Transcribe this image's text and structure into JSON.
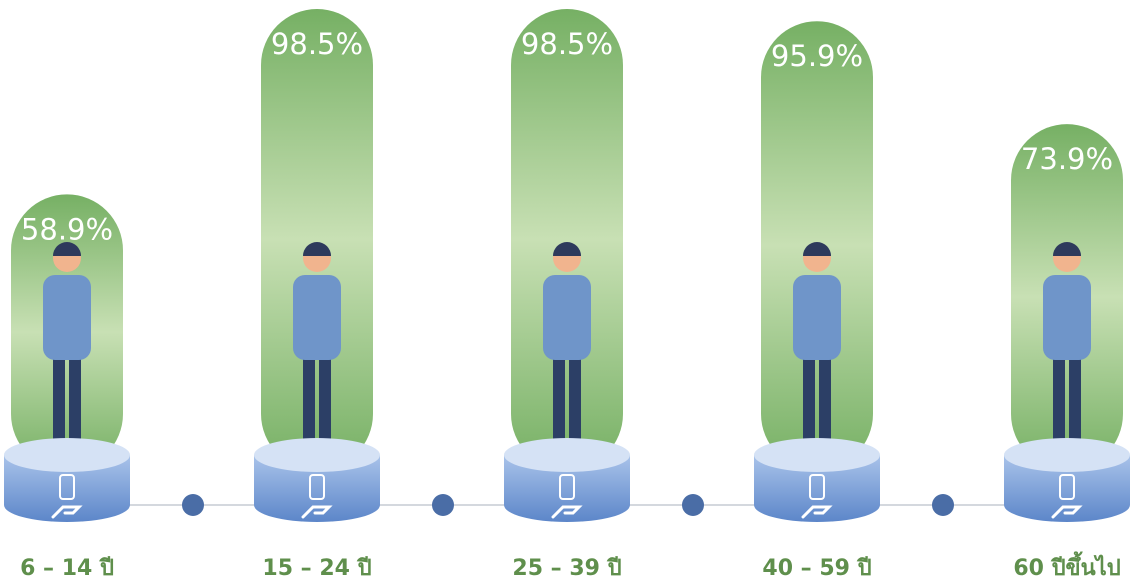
{
  "chart_data": {
    "type": "bar",
    "categories": [
      "6 – 14 ปี",
      "15 – 24 ปี",
      "25 – 39 ปี",
      "40 – 59 ปี",
      "60 ปีขึ้นไป"
    ],
    "values": [
      58.9,
      98.5,
      98.5,
      95.9,
      73.9
    ],
    "value_labels": [
      "58.9%",
      "98.5%",
      "98.5%",
      "95.9%",
      "73.9%"
    ],
    "color": "#76b064",
    "ylim": [
      0,
      100
    ]
  }
}
